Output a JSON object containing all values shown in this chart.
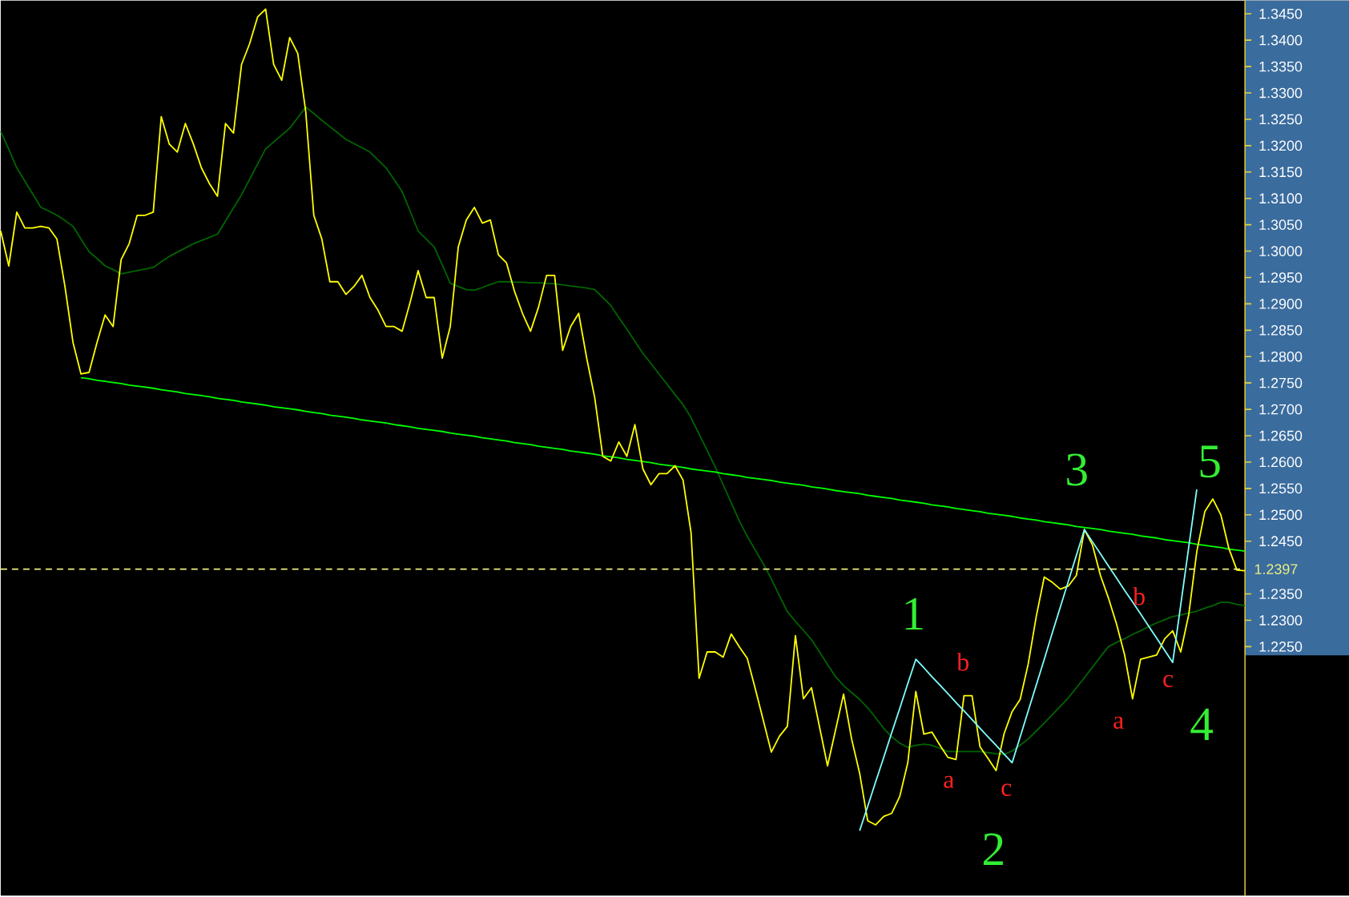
{
  "chart_data": {
    "type": "line",
    "categories": [
      null,
      null,
      null,
      null,
      null,
      null,
      null,
      null,
      null,
      null,
      null,
      null,
      null,
      null,
      null,
      null,
      null,
      null,
      null,
      null,
      null,
      null,
      null,
      null,
      null,
      null,
      null,
      null,
      null,
      null,
      null,
      null,
      null,
      null,
      null,
      null,
      null,
      null,
      null,
      null,
      null,
      null,
      null,
      null,
      null,
      null,
      null,
      null,
      null,
      null,
      null,
      null,
      null,
      null,
      null,
      null,
      null,
      null,
      null,
      null,
      null,
      null,
      null,
      null,
      null,
      null,
      null,
      null,
      null,
      null,
      null,
      null,
      null,
      null,
      null,
      null,
      null,
      null,
      null,
      null,
      null,
      null,
      null,
      null,
      null,
      null,
      null,
      null,
      null,
      null,
      null,
      null,
      null,
      null,
      null,
      null,
      null,
      null,
      null,
      null,
      null,
      null,
      null,
      null,
      null,
      null,
      null,
      null,
      null,
      null,
      null,
      null,
      null,
      null,
      null,
      null,
      null,
      null,
      null,
      null,
      null,
      null,
      null,
      null,
      null,
      null,
      null,
      null,
      null,
      null,
      null,
      null,
      null,
      null,
      null,
      null,
      null,
      null,
      null,
      null,
      null,
      null,
      null,
      null,
      null,
      null,
      null,
      null,
      null,
      null,
      null,
      null,
      null,
      null,
      null,
      null
    ],
    "series": [
      {
        "color": "#006400",
        "values": [
          1.3227,
          1.3193,
          1.3158,
          1.3133,
          1.3108,
          1.3083,
          1.3076,
          1.3068,
          1.3058,
          1.3047,
          1.3023,
          1.2999,
          1.2986,
          1.2972,
          1.2965,
          1.2957,
          1.296,
          1.2963,
          1.2966,
          1.2969,
          1.298,
          1.299,
          1.2998,
          1.3006,
          1.3014,
          1.302,
          1.3026,
          1.3032,
          1.3057,
          1.3082,
          1.3107,
          1.3136,
          1.3165,
          1.3194,
          1.3207,
          1.322,
          1.3233,
          1.3253,
          1.3273,
          1.3261,
          1.3248,
          1.3236,
          1.3224,
          1.3212,
          1.3204,
          1.3196,
          1.3188,
          1.3173,
          1.3158,
          1.3136,
          1.3113,
          1.3076,
          1.3038,
          1.3023,
          1.3008,
          1.2974,
          1.2939,
          1.2933,
          1.2927,
          1.2926,
          1.2931,
          1.2937,
          1.2942,
          1.2942,
          1.2941,
          1.2941,
          1.294,
          1.294,
          1.2939,
          1.2938,
          1.2936,
          1.2934,
          1.2932,
          1.293,
          1.2927,
          1.2912,
          1.2897,
          1.2874,
          1.2852,
          1.2829,
          1.2806,
          1.2787,
          1.2767,
          1.2748,
          1.2728,
          1.2709,
          1.2684,
          1.2653,
          1.2622,
          1.2591,
          1.2557,
          1.2523,
          1.2489,
          1.2459,
          1.2433,
          1.2407,
          1.2378,
          1.2347,
          1.2316,
          1.2298,
          1.2281,
          1.2263,
          1.224,
          1.2216,
          1.2193,
          1.2176,
          1.2163,
          1.215,
          1.2134,
          1.2115,
          1.2095,
          1.2079,
          1.2067,
          1.2059,
          1.2063,
          1.2065,
          1.2063,
          1.2057,
          1.2051,
          1.2051,
          1.2051,
          1.2051,
          1.2051,
          1.2049,
          1.2047,
          1.2046,
          1.2052,
          1.2063,
          1.2075,
          1.209,
          1.2105,
          1.2121,
          1.2137,
          1.2153,
          1.2172,
          1.2191,
          1.2211,
          1.2231,
          1.225,
          1.2258,
          1.2265,
          1.2273,
          1.228,
          1.2288,
          1.2295,
          1.2301,
          1.2307,
          1.231,
          1.2314,
          1.2317,
          1.2323,
          1.2328,
          1.2334,
          1.2334,
          1.233,
          1.2328
        ]
      },
      {
        "color": "#00ff00",
        "values": [
          null,
          null,
          null,
          null,
          null,
          null,
          null,
          null,
          null,
          null,
          1.276,
          1.2758,
          1.2755,
          1.2753,
          1.2751,
          1.2749,
          1.2746,
          1.2744,
          1.2742,
          1.274,
          1.2737,
          1.2735,
          1.2733,
          1.273,
          1.2728,
          1.2726,
          1.2724,
          1.2721,
          1.2719,
          1.2717,
          1.2714,
          1.2712,
          1.271,
          1.2708,
          1.2705,
          1.2703,
          1.2701,
          1.2699,
          1.2696,
          1.2694,
          1.2692,
          1.2689,
          1.2687,
          1.2685,
          1.2683,
          1.268,
          1.2678,
          1.2676,
          1.2674,
          1.2671,
          1.2669,
          1.2667,
          1.2664,
          1.2662,
          1.266,
          1.2658,
          1.2655,
          1.2653,
          1.2651,
          1.2649,
          1.2646,
          1.2644,
          1.2642,
          1.264,
          1.2637,
          1.2635,
          1.2633,
          1.263,
          1.2628,
          1.2626,
          1.2624,
          1.2621,
          1.2619,
          1.2617,
          1.2615,
          1.2612,
          1.261,
          1.2608,
          1.2605,
          1.2603,
          1.2601,
          1.2599,
          1.2596,
          1.2594,
          1.2592,
          1.259,
          1.2587,
          1.2585,
          1.2583,
          1.2581,
          1.2578,
          1.2576,
          1.2574,
          1.2571,
          1.2569,
          1.2567,
          1.2565,
          1.2562,
          1.256,
          1.2558,
          1.2556,
          1.2553,
          1.2551,
          1.2549,
          1.2546,
          1.2544,
          1.2542,
          1.254,
          1.2537,
          1.2535,
          1.2533,
          1.2531,
          1.2528,
          1.2526,
          1.2524,
          1.2522,
          1.2519,
          1.2517,
          1.2515,
          1.2512,
          1.251,
          1.2508,
          1.2506,
          1.2503,
          1.2501,
          1.2499,
          1.2497,
          1.2494,
          1.2492,
          1.249,
          1.2487,
          1.2485,
          1.2483,
          1.2481,
          1.2478,
          1.2476,
          1.2474,
          1.2472,
          1.2469,
          1.2467,
          1.2465,
          1.2463,
          1.246,
          1.2458,
          1.2456,
          1.2453,
          1.2451,
          1.2449,
          1.2447,
          1.2444,
          1.2442,
          1.244,
          1.2438,
          1.2435,
          1.2433,
          1.2431
        ]
      },
      {
        "color": "#ffff00",
        "values": [
          1.3038,
          1.2972,
          1.3074,
          1.3044,
          1.3044,
          1.3047,
          1.3044,
          1.3023,
          1.2933,
          1.2827,
          1.2767,
          1.277,
          1.2827,
          1.2879,
          1.2857,
          1.2984,
          1.3014,
          1.3068,
          1.3068,
          1.3074,
          1.3255,
          1.3203,
          1.3188,
          1.3242,
          1.3203,
          1.3158,
          1.3128,
          1.3104,
          1.3242,
          1.3224,
          1.3354,
          1.3393,
          1.3444,
          1.3459,
          1.3354,
          1.3324,
          1.3405,
          1.3375,
          1.3264,
          1.3068,
          1.3023,
          1.2942,
          1.2942,
          1.2918,
          1.2933,
          1.2954,
          1.2912,
          1.2888,
          1.2857,
          1.2857,
          1.2848,
          1.2903,
          1.2963,
          1.2912,
          1.2912,
          1.2797,
          1.2857,
          1.3008,
          1.3059,
          1.3083,
          1.3053,
          1.3059,
          1.2993,
          1.2978,
          1.2924,
          1.2882,
          1.2848,
          1.2894,
          1.2954,
          1.2954,
          1.2812,
          1.2857,
          1.2882,
          1.2797,
          1.2722,
          1.2611,
          1.2602,
          1.2638,
          1.2611,
          1.2671,
          1.2587,
          1.2557,
          1.2578,
          1.2578,
          1.2593,
          1.2566,
          1.2466,
          1.219,
          1.224,
          1.224,
          1.223,
          1.2274,
          1.225,
          1.2228,
          1.217,
          1.211,
          1.205,
          1.208,
          1.2099,
          1.2271,
          1.2151,
          1.2172,
          1.2098,
          1.2024,
          1.2092,
          1.216,
          1.2075,
          1.201,
          1.192,
          1.1912,
          1.1928,
          1.1934,
          1.1966,
          1.203,
          1.2165,
          1.2084,
          1.2088,
          1.2063,
          1.204,
          1.2036,
          1.2157,
          1.2157,
          1.206,
          1.2038,
          1.2015,
          1.2085,
          1.2127,
          1.215,
          1.2217,
          1.2307,
          1.2382,
          1.2372,
          1.2359,
          1.2365,
          1.2385,
          1.2472,
          1.2443,
          1.2385,
          1.2342,
          1.2293,
          1.2235,
          1.2151,
          1.2226,
          1.223,
          1.2234,
          1.2265,
          1.228,
          1.224,
          1.2311,
          1.243,
          1.2506,
          1.253,
          1.25,
          1.2436,
          1.2395,
          1.2394
        ]
      },
      {
        "color": "#80ffff",
        "values": [
          null,
          null,
          null,
          null,
          null,
          null,
          null,
          null,
          null,
          null,
          null,
          null,
          null,
          null,
          null,
          null,
          null,
          null,
          null,
          null,
          null,
          null,
          null,
          null,
          null,
          null,
          null,
          null,
          null,
          null,
          null,
          null,
          null,
          null,
          null,
          null,
          null,
          null,
          null,
          null,
          null,
          null,
          null,
          null,
          null,
          null,
          null,
          null,
          null,
          null,
          null,
          null,
          null,
          null,
          null,
          null,
          null,
          null,
          null,
          null,
          null,
          null,
          null,
          null,
          null,
          null,
          null,
          null,
          null,
          null,
          null,
          null,
          null,
          null,
          null,
          null,
          null,
          null,
          null,
          null,
          null,
          null,
          null,
          null,
          null,
          null,
          null,
          null,
          null,
          null,
          null,
          null,
          null,
          null,
          null,
          null,
          null,
          null,
          null,
          null,
          null,
          null,
          null,
          null,
          null,
          null,
          null,
          1.1901,
          1.1947,
          1.1994,
          1.204,
          1.2087,
          1.2133,
          1.218,
          1.2226,
          1.221,
          1.2193,
          1.2177,
          1.2161,
          1.2144,
          1.2128,
          1.2112,
          1.2095,
          1.2079,
          1.2063,
          1.2046,
          1.203,
          1.2079,
          1.2128,
          1.2177,
          1.2226,
          1.2276,
          1.2325,
          1.2374,
          1.2423,
          1.2472,
          1.2449,
          1.2426,
          1.2403,
          1.238,
          1.2357,
          1.2335,
          1.2312,
          1.2289,
          1.2266,
          1.2243,
          1.222,
          1.2329,
          1.2439,
          1.2548,
          null,
          null,
          null,
          null,
          null,
          null
        ]
      }
    ],
    "ylim": [
      1.1778,
      1.3475
    ],
    "yticks": [
      {
        "value": 1.225,
        "label": "1.2250"
      },
      {
        "value": 1.23,
        "label": "1.2300"
      },
      {
        "value": 1.235,
        "label": "1.2350"
      },
      {
        "value": 1.245,
        "label": "1.2450"
      },
      {
        "value": 1.25,
        "label": "1.2500"
      },
      {
        "value": 1.255,
        "label": "1.2550"
      },
      {
        "value": 1.26,
        "label": "1.2600"
      },
      {
        "value": 1.265,
        "label": "1.2650"
      },
      {
        "value": 1.27,
        "label": "1.2700"
      },
      {
        "value": 1.275,
        "label": "1.2750"
      },
      {
        "value": 1.28,
        "label": "1.2800"
      },
      {
        "value": 1.285,
        "label": "1.2850"
      },
      {
        "value": 1.29,
        "label": "1.2900"
      },
      {
        "value": 1.295,
        "label": "1.2950"
      },
      {
        "value": 1.3,
        "label": "1.3000"
      },
      {
        "value": 1.305,
        "label": "1.3050"
      },
      {
        "value": 1.31,
        "label": "1.3100"
      },
      {
        "value": 1.315,
        "label": "1.3150"
      },
      {
        "value": 1.32,
        "label": "1.3200"
      },
      {
        "value": 1.325,
        "label": "1.3250"
      },
      {
        "value": 1.33,
        "label": "1.3300"
      },
      {
        "value": 1.335,
        "label": "1.3350"
      },
      {
        "value": 1.34,
        "label": "1.3400"
      },
      {
        "value": 1.345,
        "label": "1.3450"
      }
    ],
    "tick_labels": "y",
    "ref_lines": [
      {
        "axis": "y",
        "value": 1.2397,
        "label": "1.2397",
        "color": "#f0f080",
        "line_style": "dashed"
      }
    ],
    "annotations": [
      "1",
      "2",
      "3",
      "4",
      "5",
      "a",
      "b",
      "c",
      "a",
      "b",
      "c"
    ]
  }
}
